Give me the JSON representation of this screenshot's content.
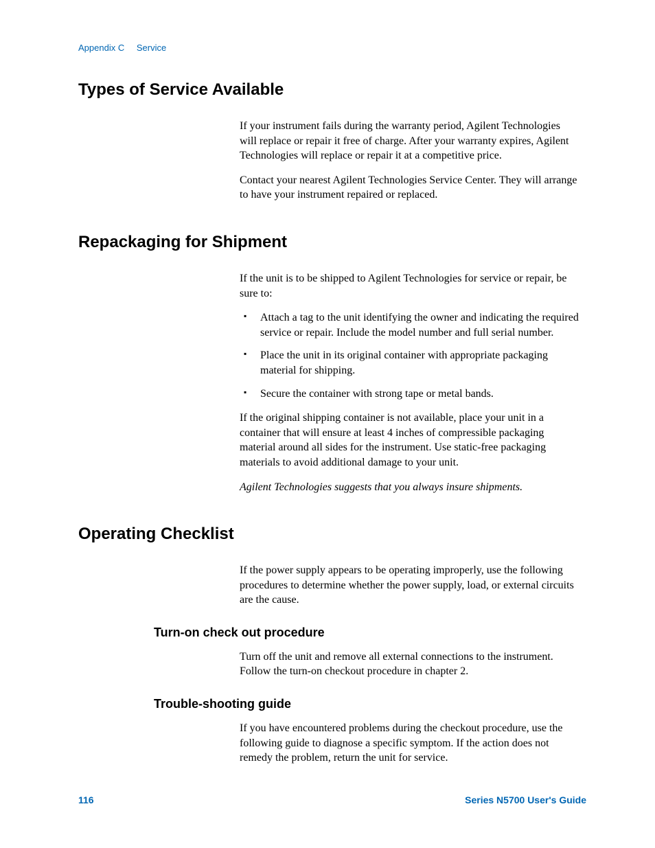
{
  "header": {
    "appendix": "Appendix C",
    "section": "Service"
  },
  "sections": {
    "types_of_service": {
      "heading": "Types of Service Available",
      "para1": "If your instrument fails during the warranty period, Agilent Technologies will replace or repair it free of charge. After your warranty expires, Agilent Technologies will replace or repair it at a competitive price.",
      "para2": "Contact your nearest Agilent Technologies Service Center. They will arrange to have your instrument repaired or replaced."
    },
    "repackaging": {
      "heading": "Repackaging for Shipment",
      "intro": "If the unit is to be shipped to Agilent Technologies for service or repair, be sure to:",
      "bullets": [
        "Attach a tag to the unit identifying the owner and indicating the required service or repair. Include the model number and full serial number.",
        "Place the unit in its original container with appropriate packaging material for shipping.",
        "Secure the container with strong tape or metal bands."
      ],
      "after": "If the original shipping container is not available, place your unit in a container that will ensure at least 4 inches of compressible packaging material around all sides for the instrument. Use static-free packaging materials to avoid additional damage to your unit.",
      "note": "Agilent Technologies suggests that you always insure shipments."
    },
    "operating_checklist": {
      "heading": "Operating Checklist",
      "intro": "If the power supply appears to be operating improperly, use the following procedures to determine whether the power supply, load, or external circuits are the cause.",
      "turn_on": {
        "heading": "Turn-on check out procedure",
        "text": "Turn off the unit and remove all external connections to the instrument. Follow the turn-on checkout procedure in chapter 2."
      },
      "troubleshooting": {
        "heading": "Trouble-shooting guide",
        "text": "If you have encountered problems during the checkout procedure, use the following guide to diagnose a specific symptom.  If the action does not remedy the problem, return the unit for service."
      }
    }
  },
  "footer": {
    "page_number": "116",
    "guide_title": "Series N5700 User's Guide"
  },
  "colors": {
    "header_blue": "#0066b3",
    "text_black": "#000000",
    "background": "#ffffff"
  },
  "typography": {
    "heading_fontsize": 24,
    "subheading_fontsize": 18,
    "body_fontsize": 16,
    "header_fontsize": 13,
    "footer_fontsize": 14
  }
}
